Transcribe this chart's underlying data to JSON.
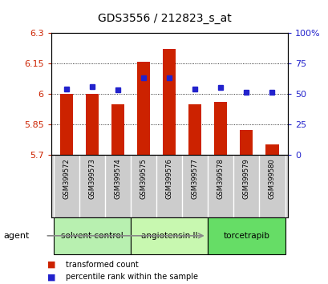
{
  "title": "GDS3556 / 212823_s_at",
  "samples": [
    "GSM399572",
    "GSM399573",
    "GSM399574",
    "GSM399575",
    "GSM399576",
    "GSM399577",
    "GSM399578",
    "GSM399579",
    "GSM399580"
  ],
  "bar_values": [
    6.0,
    6.0,
    5.95,
    6.155,
    6.22,
    5.95,
    5.96,
    5.82,
    5.75
  ],
  "dot_values": [
    54,
    56,
    53,
    63,
    63,
    54,
    55,
    51,
    51
  ],
  "ylim_left": [
    5.7,
    6.3
  ],
  "ylim_right": [
    0,
    100
  ],
  "yticks_left": [
    5.7,
    5.85,
    6.0,
    6.15,
    6.3
  ],
  "ytick_labels_left": [
    "5.7",
    "5.85",
    "6",
    "6.15",
    "6.3"
  ],
  "yticks_right": [
    0,
    25,
    50,
    75,
    100
  ],
  "ytick_labels_right": [
    "0",
    "25",
    "50",
    "75",
    "100%"
  ],
  "groups": [
    {
      "label": "solvent control",
      "indices": [
        0,
        1,
        2
      ],
      "color": "#b8f0b0"
    },
    {
      "label": "angiotensin II",
      "indices": [
        3,
        4,
        5
      ],
      "color": "#c8f8b0"
    },
    {
      "label": "torcetrapib",
      "indices": [
        6,
        7,
        8
      ],
      "color": "#66dd66"
    }
  ],
  "agent_label": "agent",
  "bar_color": "#cc2200",
  "dot_color": "#2222cc",
  "bar_bottom": 5.7,
  "legend_bar_label": "transformed count",
  "legend_dot_label": "percentile rank within the sample",
  "grid_color": "#000000",
  "bg_color": "#ffffff",
  "plot_bg_color": "#ffffff",
  "tick_label_color_left": "#cc2200",
  "tick_label_color_right": "#2222cc",
  "xtick_bg_color": "#cccccc",
  "bar_width": 0.5
}
